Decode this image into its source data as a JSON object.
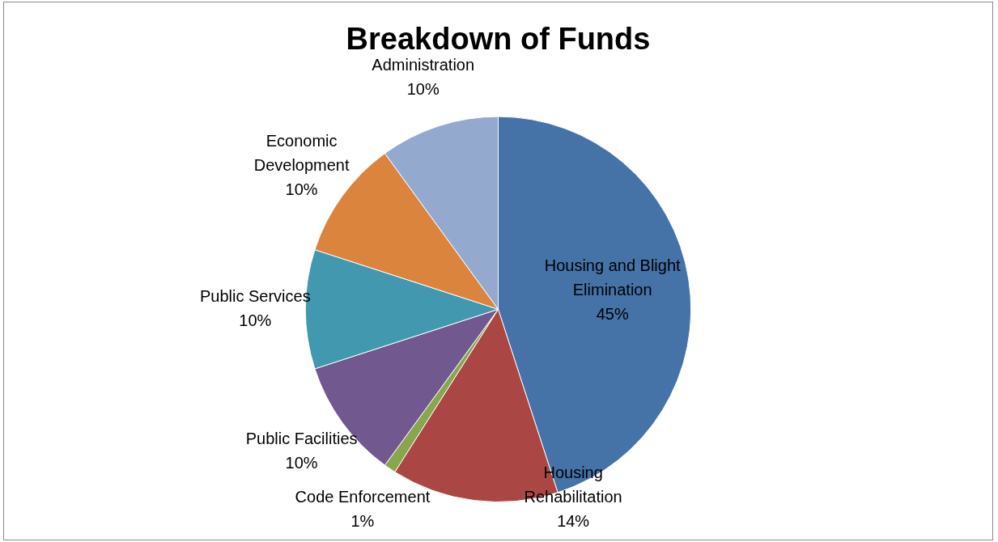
{
  "chart_data": {
    "type": "pie",
    "title": "Breakdown of Funds",
    "categories": [
      "Housing and Blight\nElimination",
      "Housing\nRehabilitation",
      "Code Enforcement",
      "Public Facilities",
      "Public Services",
      "Economic\nDevelopment",
      "Administration"
    ],
    "values": [
      45,
      14,
      1,
      10,
      10,
      10,
      10
    ],
    "value_labels": [
      "45%",
      "14%",
      "1%",
      "10%",
      "10%",
      "10%",
      "10%"
    ],
    "colors": [
      "#4572a7",
      "#aa4643",
      "#89a54e",
      "#71588f",
      "#4198af",
      "#db843d",
      "#93a9ce"
    ],
    "legend": false
  }
}
